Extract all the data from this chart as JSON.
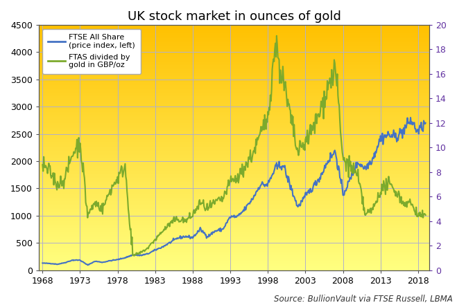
{
  "title": "UK stock market in ounces of gold",
  "source_text": "Source: BullionVault via FTSE Russell, LBMA",
  "left_ylim": [
    0,
    4500
  ],
  "right_ylim": [
    0,
    20
  ],
  "left_yticks": [
    0,
    500,
    1000,
    1500,
    2000,
    2500,
    3000,
    3500,
    4000,
    4500
  ],
  "right_yticks": [
    0,
    2,
    4,
    6,
    8,
    10,
    12,
    14,
    16,
    18,
    20
  ],
  "xticks": [
    1968,
    1973,
    1978,
    1983,
    1988,
    1993,
    1998,
    2003,
    2008,
    2013,
    2018
  ],
  "xlim": [
    1967.5,
    2019.5
  ],
  "ftse_color": "#4472c4",
  "gold_ratio_color": "#7caa2d",
  "background_top_color": "#ffc000",
  "background_bottom_color": "#ffff80",
  "grid_color": "#b0b0cc",
  "title_fontsize": 13,
  "tick_fontsize": 9,
  "right_tick_color": "#6030a0",
  "source_fontsize": 8.5,
  "years_ftse": [
    1968,
    1969,
    1970,
    1971,
    1972,
    1973,
    1974,
    1975,
    1976,
    1977,
    1978,
    1979,
    1980,
    1981,
    1982,
    1983,
    1984,
    1985,
    1986,
    1987,
    1988,
    1989,
    1990,
    1991,
    1992,
    1993,
    1994,
    1995,
    1996,
    1997,
    1998,
    1999,
    2000,
    2001,
    2002,
    2003,
    2004,
    2005,
    2006,
    2007,
    2008,
    2009,
    2010,
    2011,
    2012,
    2013,
    2014,
    2015,
    2016,
    2017,
    2018,
    2019
  ],
  "ftse_values": [
    130,
    125,
    110,
    140,
    185,
    185,
    95,
    165,
    145,
    175,
    195,
    230,
    280,
    270,
    300,
    370,
    430,
    510,
    590,
    620,
    600,
    750,
    620,
    720,
    750,
    980,
    980,
    1130,
    1320,
    1570,
    1570,
    1870,
    1940,
    1540,
    1160,
    1360,
    1520,
    1720,
    2010,
    2180,
    1380,
    1680,
    1980,
    1870,
    2060,
    2420,
    2480,
    2450,
    2550,
    2750,
    2540,
    2700
  ],
  "years_gold_ratio": [
    1968,
    1969,
    1970,
    1971,
    1972,
    1973,
    1974,
    1975,
    1976,
    1977,
    1978,
    1979,
    1980,
    1981,
    1982,
    1983,
    1984,
    1985,
    1986,
    1987,
    1988,
    1989,
    1990,
    1991,
    1992,
    1993,
    1994,
    1995,
    1996,
    1997,
    1998,
    1999,
    2000,
    2001,
    2002,
    2003,
    2004,
    2005,
    2006,
    2007,
    2008,
    2009,
    2010,
    2011,
    2012,
    2013,
    2014,
    2015,
    2016,
    2017,
    2018,
    2019
  ],
  "ratio_values": [
    8.5,
    8.0,
    7.0,
    7.5,
    9.5,
    10.5,
    4.5,
    5.5,
    5.0,
    6.5,
    7.5,
    8.5,
    1.2,
    1.4,
    1.8,
    2.5,
    3.2,
    3.8,
    4.2,
    4.0,
    4.5,
    5.5,
    5.0,
    5.5,
    5.8,
    7.2,
    7.5,
    8.5,
    9.5,
    11.0,
    12.5,
    18.5,
    15.5,
    12.5,
    9.5,
    10.5,
    11.5,
    13.0,
    15.0,
    16.5,
    9.0,
    8.5,
    7.5,
    4.5,
    5.0,
    6.5,
    7.0,
    6.5,
    5.5,
    5.5,
    4.5,
    4.5
  ]
}
